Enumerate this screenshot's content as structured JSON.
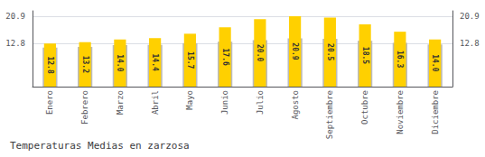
{
  "chart_data": {
    "type": "bar",
    "title": "Temperaturas Medias en zarzosa",
    "categories": [
      "Enero",
      "Febrero",
      "Marzo",
      "Abril",
      "Mayo",
      "Junio",
      "Julio",
      "Agosto",
      "Septiembre",
      "Octubre",
      "Noviembre",
      "Diciembre"
    ],
    "series": [
      {
        "color": "#BBBBBB",
        "values": [
          11.6,
          11.8,
          12.3,
          12.4,
          12.9,
          13.3,
          13.8,
          14.3,
          14.2,
          13.6,
          13.0,
          12.5
        ]
      },
      {
        "color": "#FFD000",
        "values": [
          12.8,
          13.2,
          14.0,
          14.4,
          15.7,
          17.6,
          20.0,
          20.9,
          20.5,
          18.5,
          16.3,
          14.0
        ],
        "data_labels": true,
        "value_labels": [
          "12.8",
          "13.2",
          "14.0",
          "14.4",
          "15.7",
          "17.6",
          "20.0",
          "20.9",
          "20.5",
          "18.5",
          "16.3",
          "14.0"
        ]
      }
    ],
    "ylim": [
      0,
      22.5
    ],
    "yticks": [
      12.8,
      20.9
    ],
    "y2lim": [
      0,
      22.5
    ],
    "y2ticks": [
      12.8,
      20.9
    ],
    "grid": true
  }
}
